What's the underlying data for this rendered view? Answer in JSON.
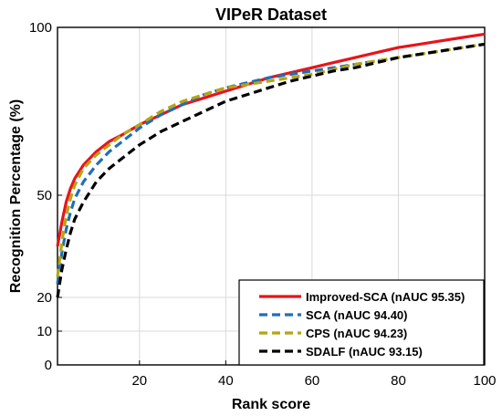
{
  "chart_data": {
    "type": "line",
    "title": "VIPeR Dataset",
    "xlabel": "Rank score",
    "ylabel": "Recognition Percentage (%)",
    "xlim": [
      1,
      100
    ],
    "ylim": [
      0,
      100
    ],
    "xticks": [
      20,
      40,
      60,
      80,
      100
    ],
    "yticks": [
      0,
      10,
      20,
      50,
      100
    ],
    "y_scale": "nonlinear (ticks 0, 10, 20, 50, 100)",
    "grid": true,
    "legend_position": "bottom-right",
    "series": [
      {
        "name": "Improved-SCA (nAUC 95.35)",
        "color": "#e8141a",
        "dash": "solid",
        "x": [
          1,
          2,
          3,
          4,
          5,
          7,
          10,
          13,
          16,
          20,
          25,
          30,
          35,
          40,
          45,
          50,
          55,
          60,
          65,
          70,
          75,
          80,
          85,
          90,
          95,
          100
        ],
        "y": [
          35,
          42,
          48,
          52,
          55,
          59,
          63,
          66,
          68,
          71,
          74,
          77,
          79,
          81,
          83,
          85,
          86.5,
          88,
          89.5,
          91,
          92.5,
          94,
          95,
          96,
          97,
          98
        ]
      },
      {
        "name": "SCA (nAUC 94.40)",
        "color": "#1f6fb5",
        "dash": "dashed",
        "x": [
          1,
          2,
          3,
          4,
          5,
          7,
          10,
          13,
          16,
          20,
          25,
          30,
          35,
          40,
          45,
          50,
          55,
          60,
          65,
          70,
          75,
          80,
          85,
          90,
          95,
          100
        ],
        "y": [
          24,
          33,
          40,
          45,
          49,
          54,
          59,
          63,
          66,
          70,
          74,
          77,
          80,
          82,
          83.5,
          85,
          86,
          87,
          88,
          89,
          90,
          91,
          92,
          93,
          94,
          95
        ]
      },
      {
        "name": "CPS (nAUC 94.23)",
        "color": "#b5a511",
        "dash": "dashed",
        "x": [
          1,
          2,
          3,
          4,
          5,
          7,
          10,
          13,
          16,
          20,
          25,
          30,
          35,
          40,
          45,
          50,
          55,
          60,
          65,
          70,
          75,
          80,
          85,
          90,
          95,
          100
        ],
        "y": [
          26,
          36,
          44,
          49,
          53,
          58,
          62,
          65,
          68,
          71,
          75,
          78,
          80,
          82,
          83,
          84,
          85,
          86,
          87.5,
          89,
          90,
          91,
          92,
          93,
          94,
          95
        ]
      },
      {
        "name": "SDALF (nAUC 93.15)",
        "color": "#000000",
        "dash": "dashed",
        "x": [
          1,
          2,
          3,
          4,
          5,
          7,
          10,
          13,
          16,
          20,
          25,
          30,
          35,
          40,
          45,
          50,
          55,
          60,
          65,
          70,
          75,
          80,
          85,
          90,
          95,
          100
        ],
        "y": [
          20,
          28,
          34,
          39,
          43,
          48,
          54,
          58,
          61,
          65,
          69,
          72,
          75,
          78,
          80,
          82,
          84,
          85.5,
          87,
          88,
          89.5,
          91,
          92,
          93,
          94,
          95
        ]
      }
    ]
  }
}
